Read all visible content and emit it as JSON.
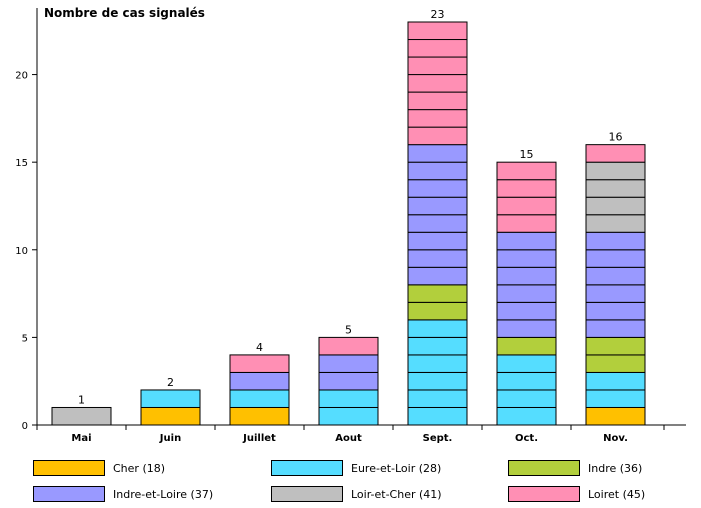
{
  "chart_data": {
    "type": "bar",
    "stacked": true,
    "ylabel": "Nombre de cas signalés",
    "xlabel": "",
    "ylim": [
      0,
      23
    ],
    "yticks": [
      0,
      5,
      10,
      15,
      20
    ],
    "categories": [
      "Mai",
      "Juin",
      "Juillet",
      "Aout",
      "Sept.",
      "Oct.",
      "Nov."
    ],
    "totals": [
      1,
      2,
      4,
      5,
      23,
      15,
      16
    ],
    "series": [
      {
        "name": "Cher (18)",
        "color": "#FFC000",
        "values": [
          0,
          1,
          1,
          0,
          0,
          0,
          1
        ]
      },
      {
        "name": "Eure-et-Loir (28)",
        "color": "#55DDFF",
        "values": [
          0,
          1,
          1,
          2,
          6,
          4,
          2
        ]
      },
      {
        "name": "Indre (36)",
        "color": "#B2CF3C",
        "values": [
          0,
          0,
          0,
          0,
          2,
          1,
          2
        ]
      },
      {
        "name": "Indre-et-Loire (37)",
        "color": "#9999FF",
        "values": [
          0,
          0,
          1,
          2,
          8,
          6,
          6
        ]
      },
      {
        "name": "Loir-et-Cher (41)",
        "color": "#BFBFBF",
        "values": [
          1,
          0,
          0,
          0,
          0,
          0,
          4
        ]
      },
      {
        "name": "Loiret (45)",
        "color": "#FF8FB4",
        "values": [
          0,
          0,
          1,
          1,
          7,
          4,
          1
        ]
      }
    ],
    "grid": false,
    "legend_position": "bottom"
  }
}
